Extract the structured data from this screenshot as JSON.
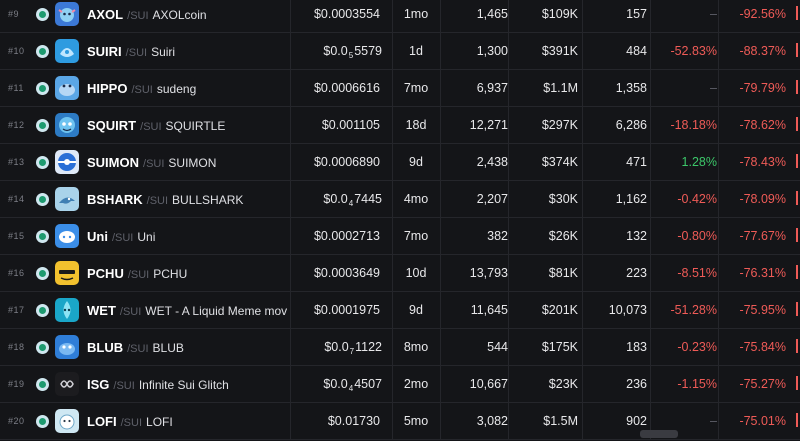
{
  "rows": [
    {
      "rank": "#9",
      "logo": "axol-logo",
      "ticker": "AXOL",
      "chain": "SUI",
      "name": "AXOLcoin",
      "price": "$0.0003554",
      "price_sub": "",
      "price_tail": "",
      "age": "1mo",
      "txns": "1,465",
      "volume": "$109K",
      "makers": "157",
      "change_a": "–",
      "change_a_tone": "dash",
      "change_b": "-92.56%",
      "change_b_tone": "neg"
    },
    {
      "rank": "#10",
      "logo": "suiri-logo",
      "ticker": "SUIRI",
      "chain": "SUI",
      "name": "Suiri",
      "price": "$0.0",
      "price_sub": "5",
      "price_tail": "5579",
      "age": "1d",
      "txns": "1,300",
      "volume": "$391K",
      "makers": "484",
      "change_a": "-52.83%",
      "change_a_tone": "neg",
      "change_b": "-88.37%",
      "change_b_tone": "neg"
    },
    {
      "rank": "#11",
      "logo": "hippo-logo",
      "ticker": "HIPPO",
      "chain": "SUI",
      "name": "sudeng",
      "price": "$0.0006616",
      "price_sub": "",
      "price_tail": "",
      "age": "7mo",
      "txns": "6,937",
      "volume": "$1.1M",
      "makers": "1,358",
      "change_a": "–",
      "change_a_tone": "dash",
      "change_b": "-79.79%",
      "change_b_tone": "neg"
    },
    {
      "rank": "#12",
      "logo": "squirt-logo",
      "ticker": "SQUIRT",
      "chain": "SUI",
      "name": "SQUIRTLE",
      "price": "$0.001105",
      "price_sub": "",
      "price_tail": "",
      "age": "18d",
      "txns": "12,271",
      "volume": "$297K",
      "makers": "6,286",
      "change_a": "-18.18%",
      "change_a_tone": "neg",
      "change_b": "-78.62%",
      "change_b_tone": "neg"
    },
    {
      "rank": "#13",
      "logo": "suimon-logo",
      "ticker": "SUIMON",
      "chain": "SUI",
      "name": "SUIMON",
      "price": "$0.0006890",
      "price_sub": "",
      "price_tail": "",
      "age": "9d",
      "txns": "2,438",
      "volume": "$374K",
      "makers": "471",
      "change_a": "1.28%",
      "change_a_tone": "pos",
      "change_b": "-78.43%",
      "change_b_tone": "neg"
    },
    {
      "rank": "#14",
      "logo": "bshark-logo",
      "ticker": "BSHARK",
      "chain": "SUI",
      "name": "BULLSHARK",
      "price": "$0.0",
      "price_sub": "4",
      "price_tail": "7445",
      "age": "4mo",
      "txns": "2,207",
      "volume": "$30K",
      "makers": "1,162",
      "change_a": "-0.42%",
      "change_a_tone": "neg",
      "change_b": "-78.09%",
      "change_b_tone": "neg"
    },
    {
      "rank": "#15",
      "logo": "uni-logo",
      "ticker": "Uni",
      "chain": "SUI",
      "name": "Uni",
      "price": "$0.0002713",
      "price_sub": "",
      "price_tail": "",
      "age": "7mo",
      "txns": "382",
      "volume": "$26K",
      "makers": "132",
      "change_a": "-0.80%",
      "change_a_tone": "neg",
      "change_b": "-77.67%",
      "change_b_tone": "neg"
    },
    {
      "rank": "#16",
      "logo": "pchu-logo",
      "ticker": "PCHU",
      "chain": "SUI",
      "name": "PCHU",
      "price": "$0.0003649",
      "price_sub": "",
      "price_tail": "",
      "age": "10d",
      "txns": "13,793",
      "volume": "$81K",
      "makers": "223",
      "change_a": "-8.51%",
      "change_a_tone": "neg",
      "change_b": "-76.31%",
      "change_b_tone": "neg"
    },
    {
      "rank": "#17",
      "logo": "wet-logo",
      "ticker": "WET",
      "chain": "SUI",
      "name": "WET - A Liquid Meme mov",
      "price": "$0.0001975",
      "price_sub": "",
      "price_tail": "",
      "age": "9d",
      "txns": "11,645",
      "volume": "$201K",
      "makers": "10,073",
      "change_a": "-51.28%",
      "change_a_tone": "neg",
      "change_b": "-75.95%",
      "change_b_tone": "neg"
    },
    {
      "rank": "#18",
      "logo": "blub-logo",
      "ticker": "BLUB",
      "chain": "SUI",
      "name": "BLUB",
      "price": "$0.0",
      "price_sub": "7",
      "price_tail": "1122",
      "age": "8mo",
      "txns": "544",
      "volume": "$175K",
      "makers": "183",
      "change_a": "-0.23%",
      "change_a_tone": "neg",
      "change_b": "-75.84%",
      "change_b_tone": "neg"
    },
    {
      "rank": "#19",
      "logo": "isg-logo",
      "ticker": "ISG",
      "chain": "SUI",
      "name": "Infinite Sui Glitch",
      "price": "$0.0",
      "price_sub": "4",
      "price_tail": "4507",
      "age": "2mo",
      "txns": "10,667",
      "volume": "$23K",
      "makers": "236",
      "change_a": "-1.15%",
      "change_a_tone": "neg",
      "change_b": "-75.27%",
      "change_b_tone": "neg"
    },
    {
      "rank": "#20",
      "logo": "lofi-logo",
      "ticker": "LOFI",
      "chain": "SUI",
      "name": "LOFI",
      "price": "$0.01730",
      "price_sub": "",
      "price_tail": "",
      "age": "5mo",
      "txns": "3,082",
      "volume": "$1.5M",
      "makers": "902",
      "change_a": "–",
      "change_a_tone": "dash",
      "change_b": "-75.01%",
      "change_b_tone": "neg"
    }
  ],
  "colors": {
    "positive": "#3cc76a",
    "negative": "#ef5b57",
    "background": "#141518"
  }
}
